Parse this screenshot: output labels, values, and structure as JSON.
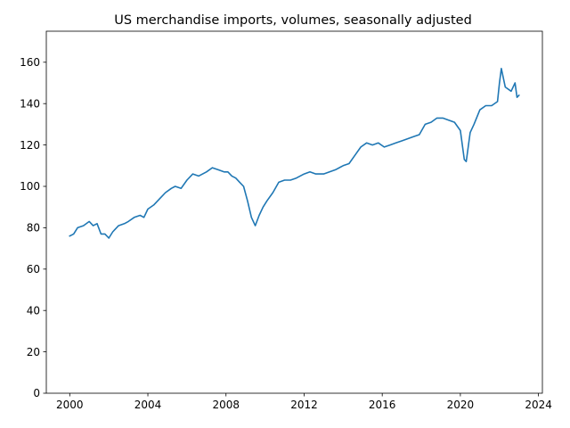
{
  "chart_data": {
    "type": "line",
    "title": "US merchandise imports, volumes, seasonally adjusted",
    "xlabel": "",
    "ylabel": "",
    "xlim": [
      1998.8,
      2024.2
    ],
    "ylim": [
      0,
      175
    ],
    "x_ticks": [
      2000,
      2004,
      2008,
      2012,
      2016,
      2020,
      2024
    ],
    "y_ticks": [
      0,
      20,
      40,
      60,
      80,
      100,
      120,
      140,
      160
    ],
    "grid": false,
    "legend": "none",
    "line_color": "#1f77b4",
    "series": [
      {
        "x": [
          2000.0,
          2000.2,
          2000.4,
          2000.7,
          2001.0,
          2001.2,
          2001.4,
          2001.6,
          2001.8,
          2002.0,
          2002.2,
          2002.5,
          2002.8,
          2003.0,
          2003.3,
          2003.6,
          2003.8,
          2004.0,
          2004.3,
          2004.6,
          2004.9,
          2005.2,
          2005.4,
          2005.7,
          2006.0,
          2006.3,
          2006.6,
          2007.0,
          2007.3,
          2007.6,
          2007.9,
          2008.1,
          2008.3,
          2008.5,
          2008.7,
          2008.9,
          2009.1,
          2009.3,
          2009.5,
          2009.7,
          2009.9,
          2010.1,
          2010.4,
          2010.7,
          2011.0,
          2011.3,
          2011.6,
          2012.0,
          2012.3,
          2012.6,
          2013.0,
          2013.3,
          2013.6,
          2014.0,
          2014.3,
          2014.6,
          2014.9,
          2015.2,
          2015.5,
          2015.8,
          2016.1,
          2016.4,
          2016.7,
          2017.0,
          2017.3,
          2017.6,
          2017.9,
          2018.2,
          2018.5,
          2018.8,
          2019.1,
          2019.4,
          2019.7,
          2020.0,
          2020.2,
          2020.3,
          2020.5,
          2020.7,
          2021.0,
          2021.3,
          2021.6,
          2021.9,
          2022.0,
          2022.1,
          2022.3,
          2022.6,
          2022.8,
          2022.9,
          2023.0
        ],
        "values": [
          76,
          77,
          80,
          81,
          83,
          81,
          82,
          77,
          77,
          75,
          78,
          81,
          82,
          83,
          85,
          86,
          85,
          89,
          91,
          94,
          97,
          99,
          100,
          99,
          103,
          106,
          105,
          107,
          109,
          108,
          107,
          107,
          105,
          104,
          102,
          100,
          93,
          85,
          81,
          86,
          90,
          93,
          97,
          102,
          103,
          103,
          104,
          106,
          107,
          106,
          106,
          107,
          108,
          110,
          111,
          115,
          119,
          121,
          120,
          121,
          119,
          120,
          121,
          122,
          123,
          124,
          125,
          130,
          131,
          133,
          133,
          132,
          131,
          127,
          113,
          112,
          126,
          130,
          137,
          139,
          139,
          141,
          150,
          157,
          148,
          146,
          150,
          143,
          144
        ]
      }
    ]
  }
}
